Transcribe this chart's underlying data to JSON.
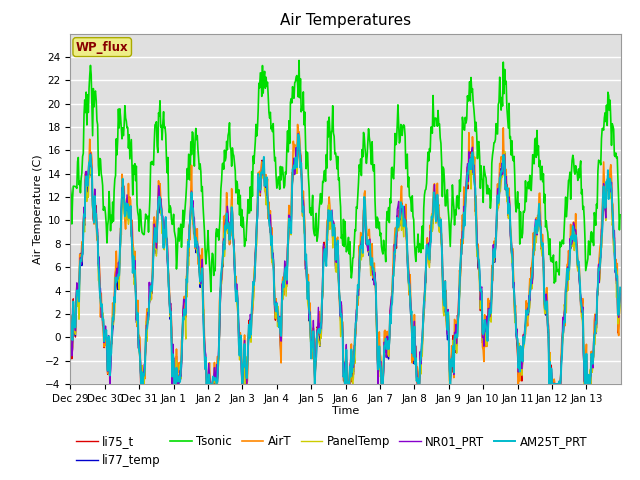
{
  "title": "Air Temperatures",
  "xlabel": "Time",
  "ylabel": "Air Temperature (C)",
  "ylim": [
    -4,
    26
  ],
  "yticks": [
    -4,
    -2,
    0,
    2,
    4,
    6,
    8,
    10,
    12,
    14,
    16,
    18,
    20,
    22,
    24
  ],
  "xtick_labels": [
    "Dec 29",
    "Dec 30",
    "Dec 31",
    "Jan 1",
    "Jan 2",
    "Jan 3",
    "Jan 4",
    "Jan 5",
    "Jan 6",
    "Jan 7",
    "Jan 8",
    "Jan 9",
    "Jan 10",
    "Jan 11",
    "Jan 12",
    "Jan 13"
  ],
  "series": {
    "li75_t": {
      "color": "#dd0000",
      "lw": 1.0
    },
    "li77_temp": {
      "color": "#0000cc",
      "lw": 1.0
    },
    "Tsonic": {
      "color": "#00dd00",
      "lw": 1.2
    },
    "AirT": {
      "color": "#ff8800",
      "lw": 1.2
    },
    "PanelTemp": {
      "color": "#cccc00",
      "lw": 1.0
    },
    "NR01_PRT": {
      "color": "#8800cc",
      "lw": 1.0
    },
    "AM25T_PRT": {
      "color": "#00bbcc",
      "lw": 1.4
    }
  },
  "legend_order": [
    "li75_t",
    "li77_temp",
    "Tsonic",
    "AirT",
    "PanelTemp",
    "NR01_PRT",
    "AM25T_PRT"
  ],
  "annotation_text": "WP_flux",
  "annotation_color": "#880000",
  "annotation_bg": "#eeee88",
  "bg_color": "#e0e0e0",
  "grid_color": "#ffffff",
  "title_fontsize": 11,
  "tick_fontsize": 7.5,
  "legend_fontsize": 8.5
}
